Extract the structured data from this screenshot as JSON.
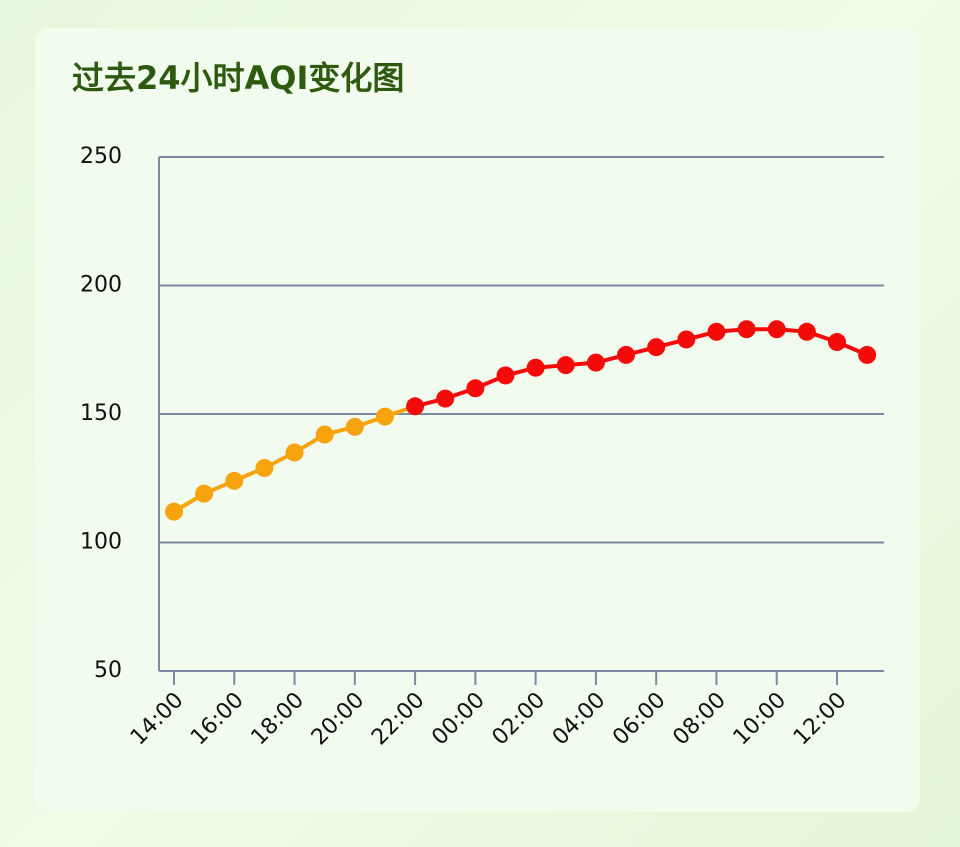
{
  "chart_data": {
    "type": "line",
    "title": "过去24小时AQI变化图",
    "categories": [
      "14:00",
      null,
      "16:00",
      null,
      "18:00",
      null,
      "20:00",
      null,
      "22:00",
      null,
      "00:00",
      null,
      "02:00",
      null,
      "04:00",
      null,
      "06:00",
      null,
      "08:00",
      null,
      "10:00",
      null,
      "12:00",
      null
    ],
    "values": [
      112,
      119,
      124,
      129,
      135,
      142,
      145,
      149,
      153,
      156,
      160,
      165,
      168,
      169,
      170,
      173,
      176,
      179,
      182,
      183,
      183,
      182,
      178,
      173
    ],
    "point_colors": [
      "#f7a30d",
      "#f7a30d",
      "#f7a30d",
      "#f7a30d",
      "#f7a30d",
      "#f7a30d",
      "#f7a30d",
      "#f7a30d",
      "#f50a0a",
      "#f50a0a",
      "#f50a0a",
      "#f50a0a",
      "#f50a0a",
      "#f50a0a",
      "#f50a0a",
      "#f50a0a",
      "#f50a0a",
      "#f50a0a",
      "#f50a0a",
      "#f50a0a",
      "#f50a0a",
      "#f50a0a",
      "#f50a0a",
      "#f50a0a"
    ],
    "ylim": [
      50,
      250
    ],
    "yticks": [
      50,
      100,
      150,
      200,
      250
    ],
    "grid": true
  }
}
